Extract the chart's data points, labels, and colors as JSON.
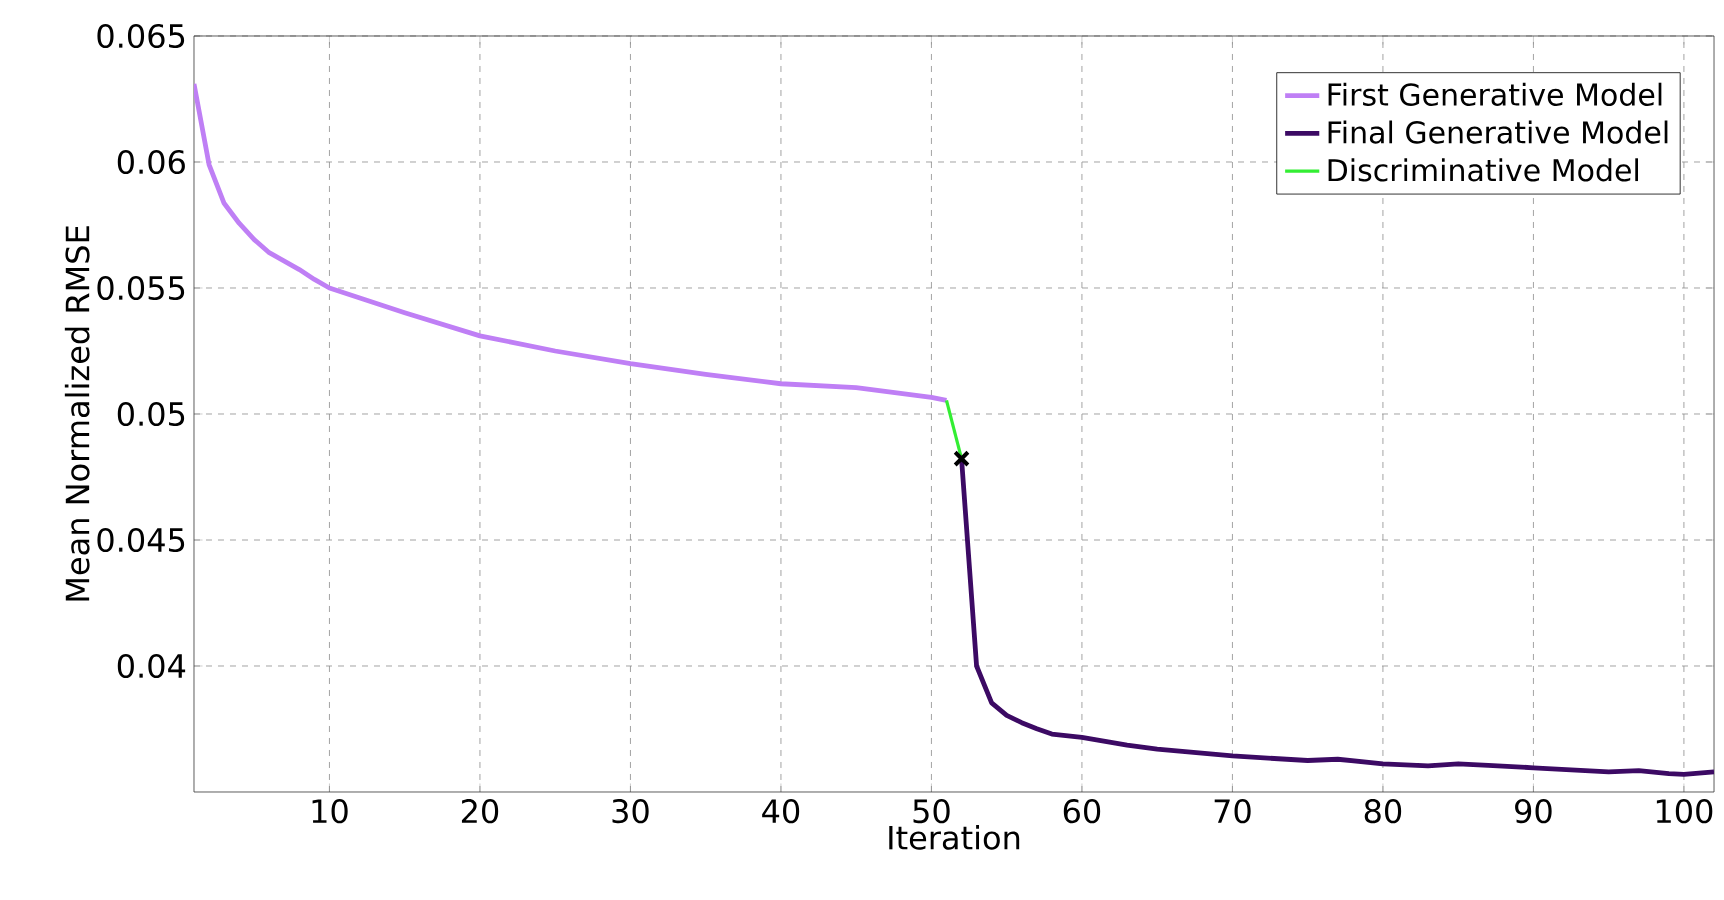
{
  "chart_data": {
    "type": "line",
    "xlabel": "Iteration",
    "ylabel": "Mean Normalized RMSE",
    "xlim": [
      1,
      102
    ],
    "ylim": [
      0.035,
      0.065
    ],
    "xticks": [
      10,
      20,
      30,
      40,
      50,
      60,
      70,
      80,
      90,
      100
    ],
    "yticks": [
      0.04,
      0.045,
      0.05,
      0.055,
      0.06,
      0.065
    ],
    "grid": true,
    "legend": "top right",
    "series": [
      {
        "name": "First Generative Model",
        "color": "#bf7ff5",
        "x": [
          1,
          2,
          3,
          4,
          5,
          6,
          7,
          8,
          9,
          10,
          15,
          20,
          25,
          30,
          35,
          40,
          45,
          50,
          51
        ],
        "values": [
          0.0631,
          0.0599,
          0.05836,
          0.05757,
          0.05692,
          0.0564,
          0.05607,
          0.05573,
          0.05534,
          0.055,
          0.05402,
          0.0531,
          0.0525,
          0.052,
          0.05157,
          0.0512,
          0.05105,
          0.05066,
          0.05054
        ]
      },
      {
        "name": "Final Generative Model",
        "color": "#3c0a64",
        "x": [
          52,
          53,
          54,
          55,
          56,
          57,
          58,
          60,
          63,
          65,
          70,
          75,
          77,
          80,
          83,
          85,
          87,
          90,
          95,
          97,
          99,
          100,
          102
        ],
        "values": [
          0.04823,
          0.04,
          0.03854,
          0.03804,
          0.03775,
          0.03751,
          0.0373,
          0.03717,
          0.03686,
          0.0367,
          0.03643,
          0.03625,
          0.0363,
          0.03612,
          0.03604,
          0.03612,
          0.03606,
          0.03596,
          0.0358,
          0.03585,
          0.03573,
          0.0357,
          0.0358
        ]
      },
      {
        "name": "Discriminative Model",
        "color": "#33ee33",
        "x": [
          51,
          52
        ],
        "values": [
          0.05054,
          0.04823
        ]
      },
      {
        "type": "scatter",
        "color": "#000000",
        "marker": "cross",
        "x": [
          52
        ],
        "values": [
          0.04823
        ]
      }
    ]
  }
}
